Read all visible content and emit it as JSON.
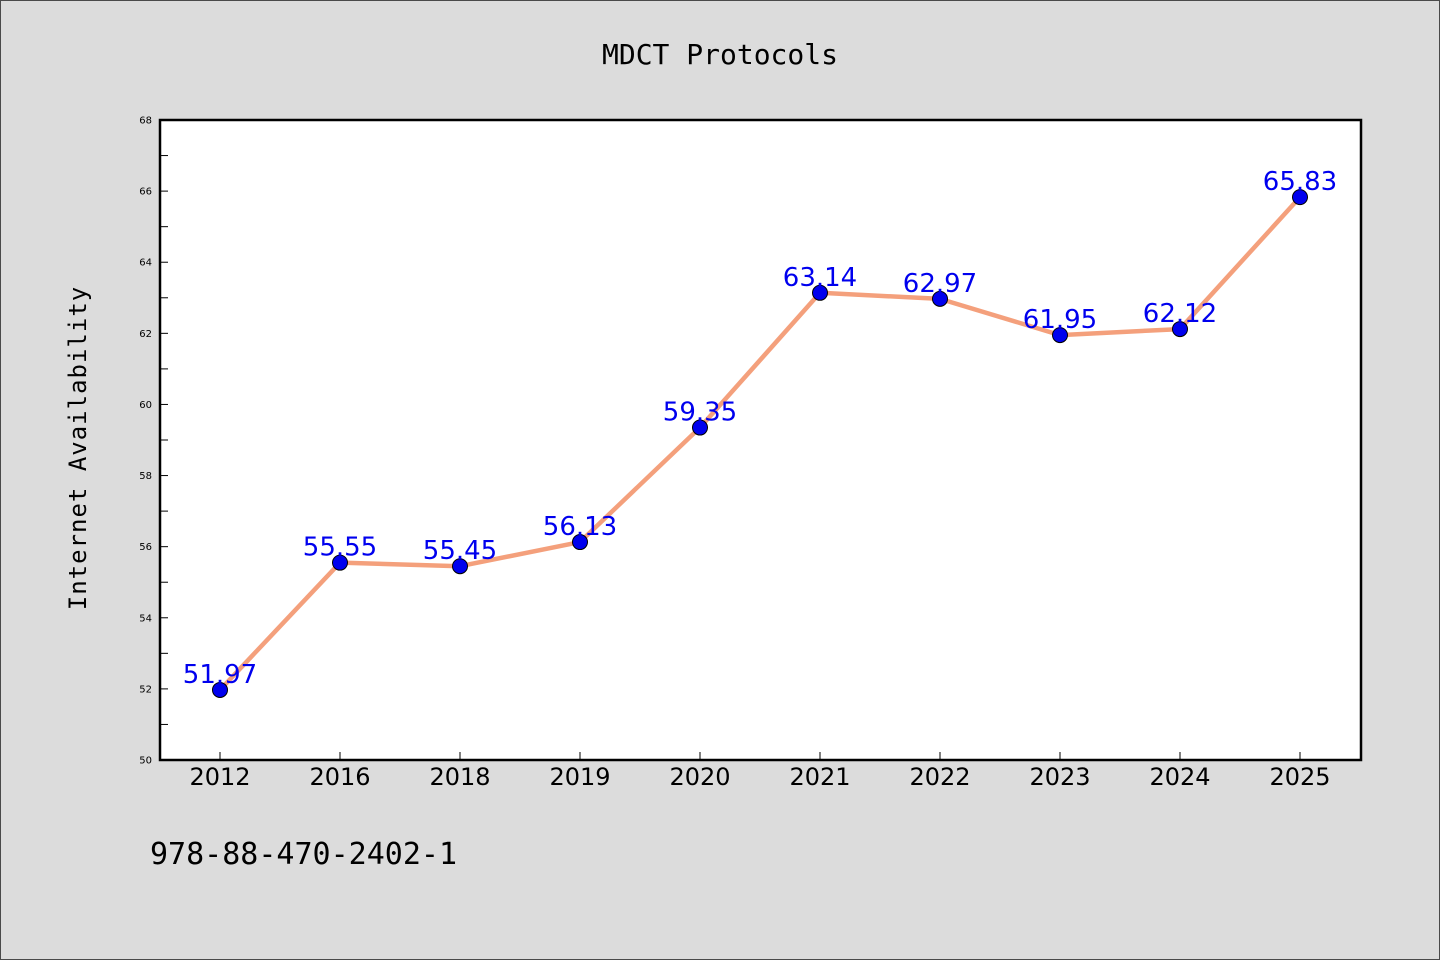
{
  "chart_data": {
    "type": "line",
    "title": "MDCT Protocols",
    "xlabel": "",
    "ylabel": "Internet Availability",
    "categories": [
      "2012",
      "2016",
      "2018",
      "2019",
      "2020",
      "2021",
      "2022",
      "2023",
      "2024",
      "2025"
    ],
    "series": [
      {
        "values": [
          51.97,
          55.55,
          55.45,
          56.13,
          59.35,
          63.14,
          62.97,
          61.95,
          62.12,
          65.83
        ]
      }
    ],
    "data_labels": [
      "51.97",
      "55.55",
      "55.45",
      "56.13",
      "59.35",
      "63.14",
      "62.97",
      "61.95",
      "62.12",
      "65.83"
    ],
    "ylim": [
      50,
      68
    ],
    "yticks": [
      "50",
      "52",
      "54",
      "56",
      "58",
      "60",
      "62",
      "64",
      "66",
      "68"
    ],
    "grid": false,
    "legend": "none",
    "colors": {
      "line": "#f4a07c",
      "marker": "#0000ee",
      "label": "#0000ee",
      "background": "#dcdcdc",
      "plot_background": "#ffffff"
    }
  },
  "footnote": "978-88-470-2402-1"
}
